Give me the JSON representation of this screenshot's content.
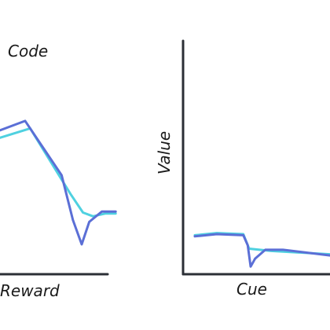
{
  "colors": {
    "axis": "#2b2f36",
    "series_dark": "#5b6fd6",
    "series_light": "#4fd1e0"
  },
  "chart_data": [
    {
      "type": "line",
      "title": "Code",
      "xlabel": "Reward",
      "ylabel": "",
      "grid": false,
      "xlim": [
        0,
        10
      ],
      "ylim": [
        0,
        10
      ],
      "series": [
        {
          "color_key": "series_dark",
          "x": [
            0,
            2.0,
            4.9,
            5.8,
            6.5,
            7.1,
            8.1,
            9.2
          ],
          "y": [
            6.9,
            7.4,
            4.5,
            2.1,
            0.8,
            2.0,
            2.55,
            2.55
          ]
        },
        {
          "color_key": "series_light",
          "x": [
            0,
            2.4,
            5.6,
            6.6,
            7.4,
            8.4,
            9.2
          ],
          "y": [
            6.5,
            7.0,
            3.5,
            2.5,
            2.3,
            2.45,
            2.45
          ]
        }
      ]
    },
    {
      "type": "line",
      "title": "",
      "xlabel": "Cue",
      "ylabel": "Value",
      "grid": false,
      "xlim": [
        0,
        10
      ],
      "ylim": [
        0,
        10
      ],
      "series": [
        {
          "color_key": "series_dark",
          "x": [
            0.8,
            2.3,
            4.1,
            4.4,
            4.6,
            4.9,
            5.6,
            6.8,
            10
          ],
          "y": [
            1.55,
            1.65,
            1.6,
            1.15,
            0.2,
            0.55,
            0.95,
            0.95,
            0.7
          ]
        },
        {
          "color_key": "series_light",
          "x": [
            0.8,
            2.3,
            4.1,
            4.5,
            6.0,
            10
          ],
          "y": [
            1.6,
            1.7,
            1.65,
            1.0,
            0.9,
            0.75
          ]
        }
      ]
    }
  ]
}
